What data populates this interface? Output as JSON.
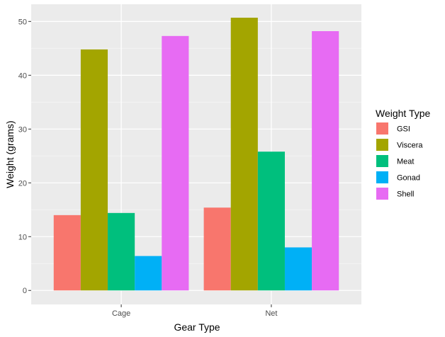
{
  "chart_data": {
    "type": "bar",
    "xlabel": "Gear Type",
    "ylabel": "Weight (grams)",
    "categories": [
      "Cage",
      "Net"
    ],
    "ylim": [
      -2.6,
      53.2
    ],
    "yticks": [
      0,
      10,
      20,
      30,
      40,
      50
    ],
    "grid": true,
    "legend": {
      "title": "Weight Type",
      "placement": "right"
    },
    "series": [
      {
        "name": "GSI",
        "color": "#F8766D",
        "values": [
          14.0,
          15.4
        ]
      },
      {
        "name": "Viscera",
        "color": "#A3A500",
        "values": [
          44.8,
          50.7
        ]
      },
      {
        "name": "Meat",
        "color": "#00BF7D",
        "values": [
          14.4,
          25.8
        ]
      },
      {
        "name": "Gonad",
        "color": "#00B0F6",
        "values": [
          6.4,
          8.0
        ]
      },
      {
        "name": "Shell",
        "color": "#E76BF3",
        "values": [
          47.3,
          48.2
        ]
      }
    ],
    "colors": {
      "panel": "#EBEBEB",
      "grid_major": "#FFFFFF",
      "grid_minor": "#F5F5F5"
    }
  }
}
